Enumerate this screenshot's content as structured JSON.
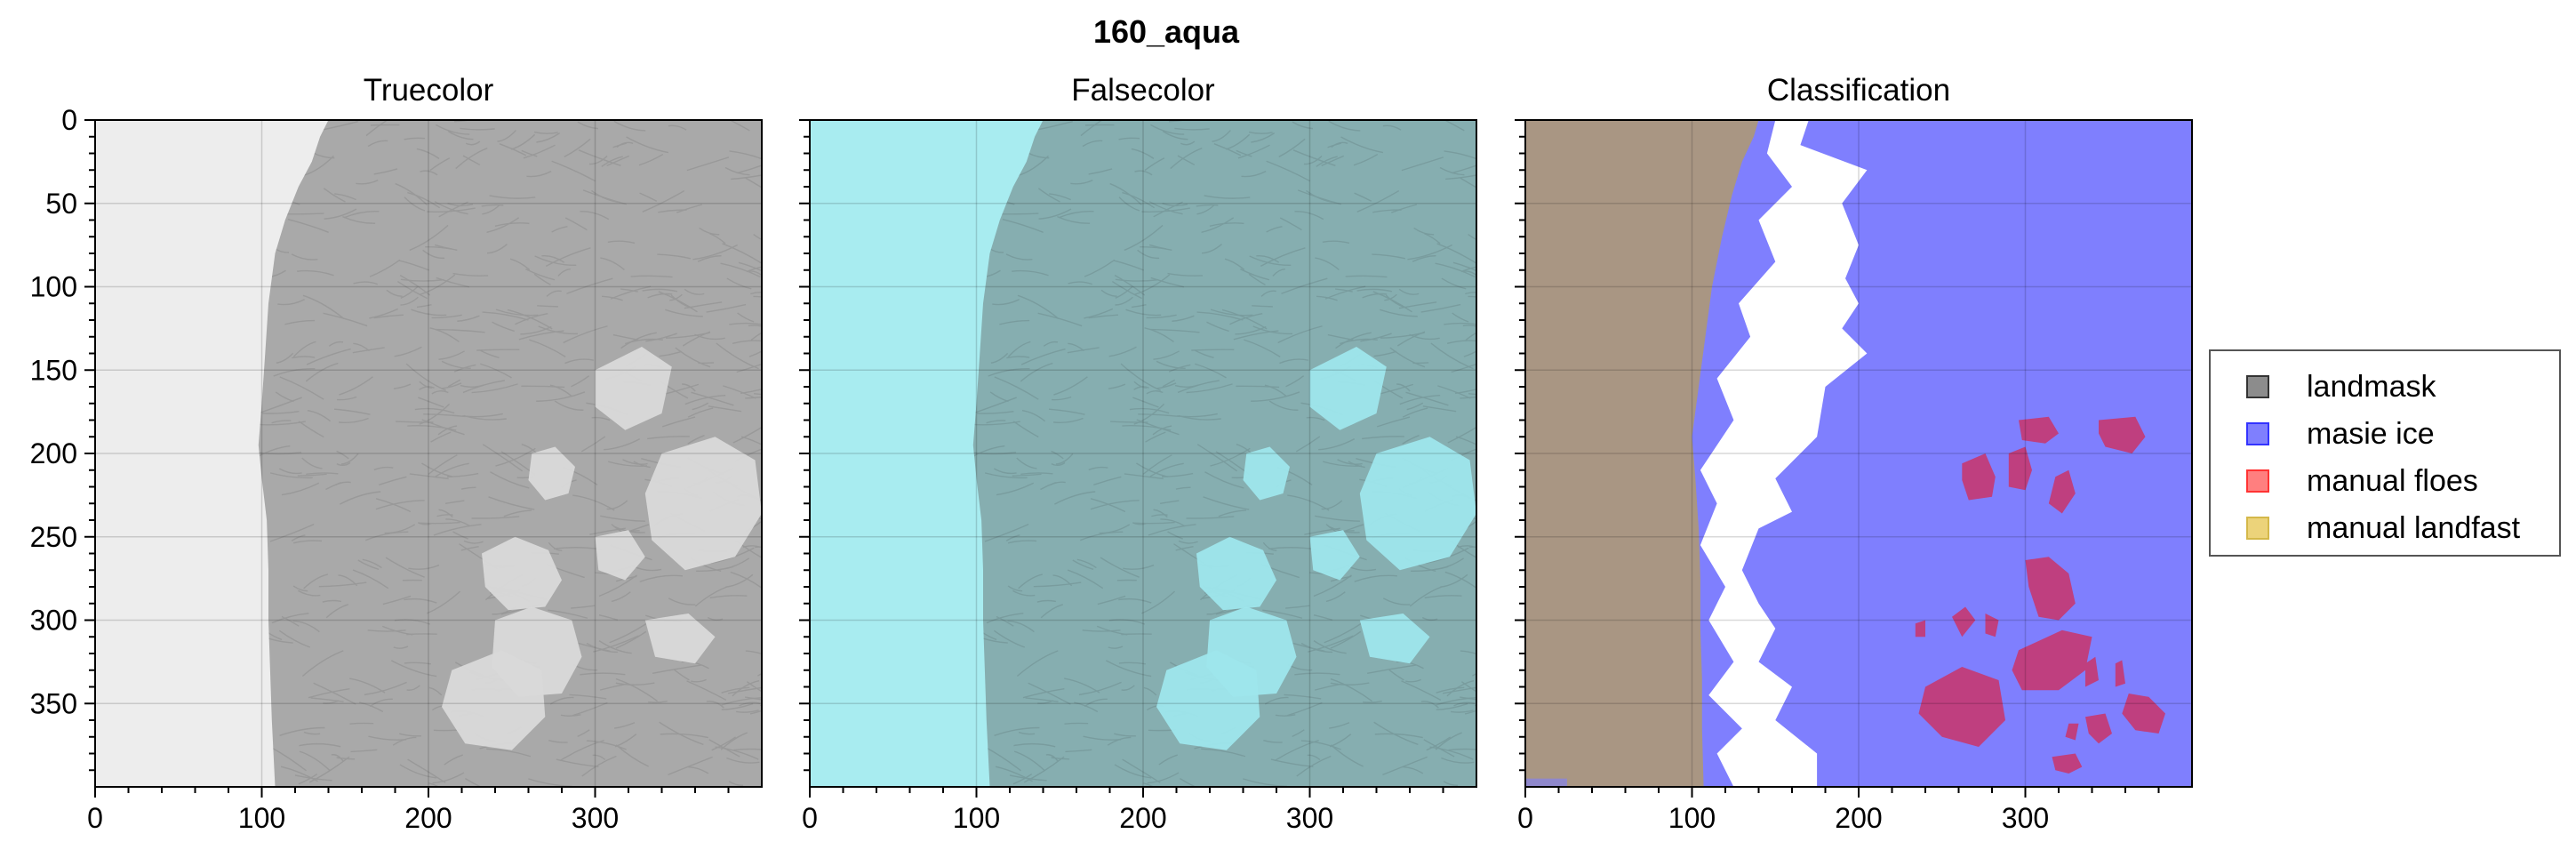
{
  "figure": {
    "suptitle": "160_aqua"
  },
  "chart_data": [
    {
      "type": "image",
      "title": "Truecolor",
      "xlabel": "",
      "ylabel": "",
      "xlim": [
        0,
        400
      ],
      "ylim": [
        400,
        0
      ],
      "xticks": [
        0,
        100,
        200,
        300
      ],
      "yticks": [
        0,
        50,
        100,
        150,
        200,
        250,
        300,
        350
      ],
      "grid": true,
      "palette": {
        "background": "#ededed",
        "ice": "#a9a9a9",
        "floes": "#d9d9d9",
        "texture": "#8c8c8c"
      }
    },
    {
      "type": "image",
      "title": "Falsecolor",
      "xlabel": "",
      "ylabel": "",
      "xlim": [
        0,
        400
      ],
      "ylim": [
        400,
        0
      ],
      "xticks": [
        0,
        100,
        200,
        300
      ],
      "yticks": [
        0,
        50,
        100,
        150,
        200,
        250,
        300,
        350
      ],
      "grid": true,
      "palette": {
        "background": "#a8ecf0",
        "ice": "#86aeb0",
        "floes": "#9ee6ec",
        "texture": "#6f8f91"
      }
    },
    {
      "type": "image",
      "title": "Classification",
      "xlabel": "",
      "ylabel": "",
      "xlim": [
        0,
        400
      ],
      "ylim": [
        400,
        0
      ],
      "xticks": [
        0,
        100,
        200,
        300
      ],
      "yticks": [
        0,
        50,
        100,
        150,
        200,
        250,
        300,
        350
      ],
      "grid": true,
      "palette": {
        "land": "#a99683",
        "masie": "#7f7ffe",
        "gap": "#ffffff",
        "floes": "#bf3f7f"
      },
      "legend": {
        "position": "right",
        "entries": [
          {
            "label": "landmask",
            "fill": "#808080",
            "edge": "#333333"
          },
          {
            "label": "masie ice",
            "fill": "#7f7ffe",
            "edge": "#3333ff"
          },
          {
            "label": "manual floes",
            "fill": "#ff7f7f",
            "edge": "#ff3333"
          },
          {
            "label": "manual landfast",
            "fill": "#ecd37a",
            "edge": "#d4b84a"
          }
        ]
      }
    }
  ]
}
